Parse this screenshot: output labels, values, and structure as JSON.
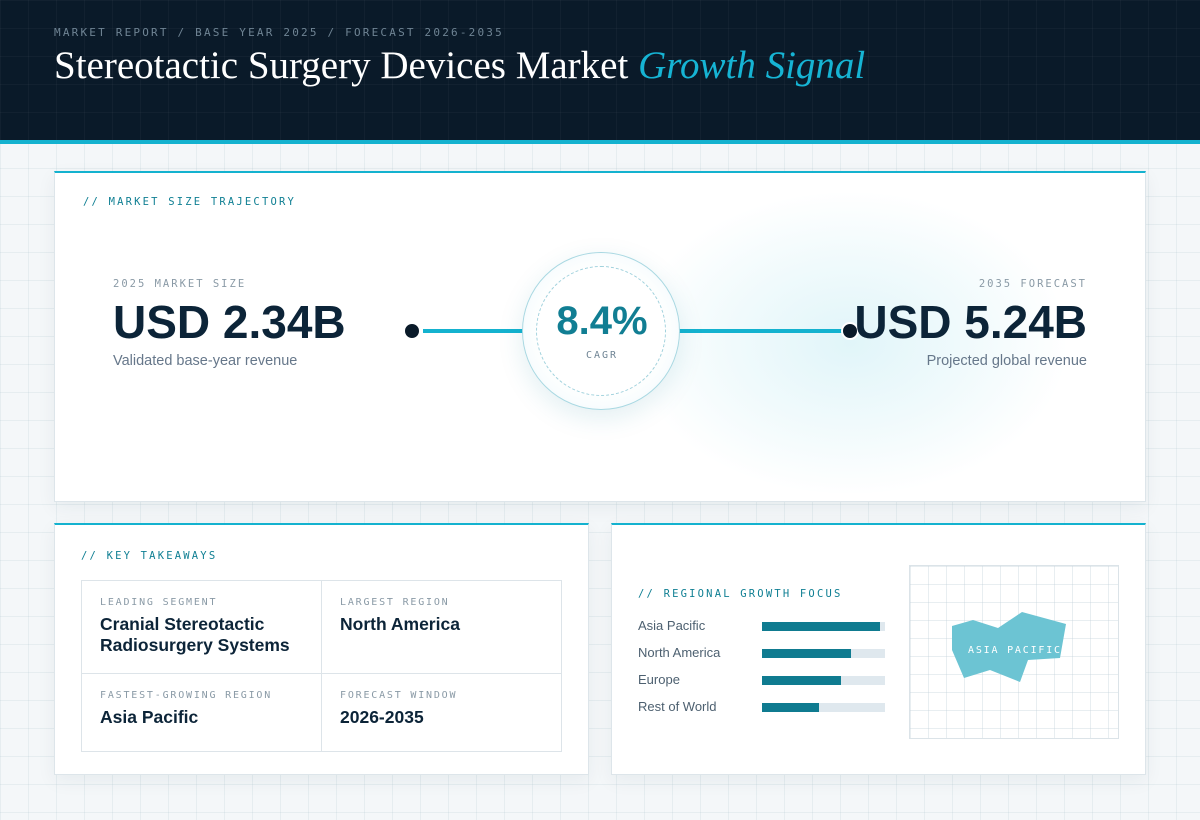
{
  "header": {
    "breadcrumb": "MARKET REPORT / BASE YEAR 2025 / FORECAST 2026-2035",
    "title_main": "Stereotactic Surgery Devices Market",
    "title_accent": "Growth Signal"
  },
  "trajectory": {
    "section_label": "// MARKET SIZE TRAJECTORY",
    "base": {
      "kicker": "2025 MARKET SIZE",
      "value": "USD 2.34B",
      "caption": "Validated base-year revenue"
    },
    "cagr": {
      "value": "8.4%",
      "label": "CAGR"
    },
    "forecast": {
      "kicker": "2035 FORECAST",
      "value": "USD 5.24B",
      "caption": "Projected global revenue"
    }
  },
  "takeaways": {
    "section_label": "// KEY TAKEAWAYS",
    "items": [
      {
        "kicker": "LEADING SEGMENT",
        "value": "Cranial Stereotactic Radiosurgery Systems"
      },
      {
        "kicker": "LARGEST REGION",
        "value": "North America"
      },
      {
        "kicker": "FASTEST-GROWING REGION",
        "value": "Asia Pacific"
      },
      {
        "kicker": "FORECAST WINDOW",
        "value": "2026-2035"
      }
    ]
  },
  "regional": {
    "section_label": "// REGIONAL GROWTH FOCUS",
    "regions": [
      {
        "name": "Asia Pacific",
        "level": 0.96
      },
      {
        "name": "North America",
        "level": 0.72
      },
      {
        "name": "Europe",
        "level": 0.64
      },
      {
        "name": "Rest of World",
        "level": 0.46
      }
    ],
    "map_label": "ASIA PACIFIC"
  },
  "colors": {
    "header_bg": "#0a1a29",
    "accent": "#14b2cf",
    "accent_dark": "#0f7b90",
    "text_dark": "#0c2438",
    "map_shape": "#6cc4d3"
  }
}
